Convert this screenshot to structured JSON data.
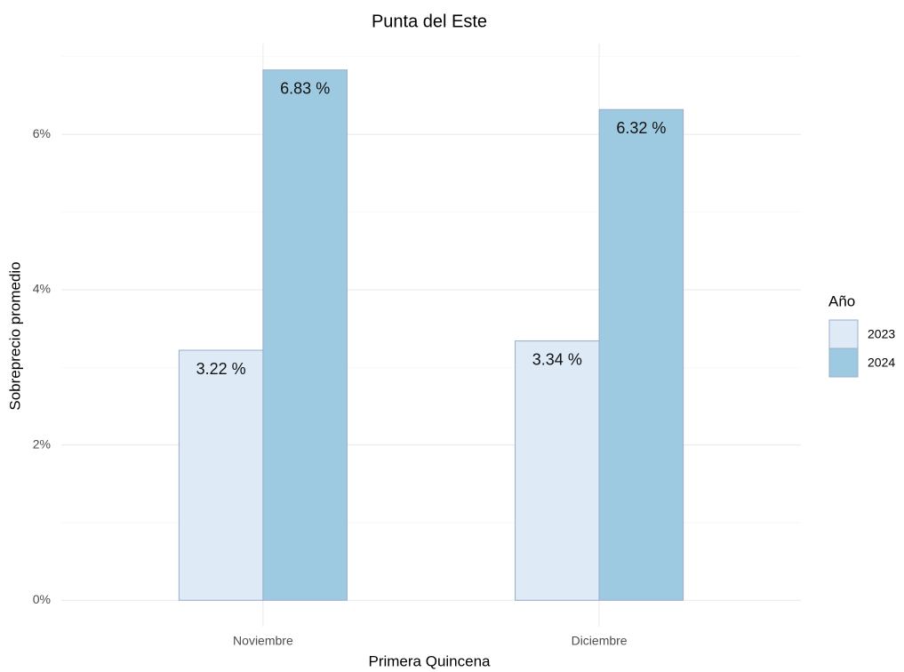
{
  "chart_data": {
    "type": "bar",
    "title": "Punta del Este",
    "x_label": "Primera Quincena",
    "y_label": "Sobreprecio promedio",
    "categories": [
      "Noviembre",
      "Diciembre"
    ],
    "legend_title": "Año",
    "series": [
      {
        "name": "2023",
        "color": "#deebf7",
        "values": [
          3.22,
          3.34
        ],
        "value_labels": [
          "3.22 %",
          "3.34 %"
        ]
      },
      {
        "name": "2024",
        "color": "#9ecae1",
        "values": [
          6.83,
          6.32
        ],
        "value_labels": [
          "6.83 %",
          "6.32 %"
        ]
      }
    ],
    "bar_edge_color": "#9aaccb",
    "ylim": [
      -0.34,
      7.17
    ],
    "yticks": [
      {
        "value": 0,
        "label": "0%"
      },
      {
        "value": 2,
        "label": "2%"
      },
      {
        "value": 4,
        "label": "4%"
      },
      {
        "value": 6,
        "label": "6%"
      }
    ],
    "minor_yticks": [
      1,
      3,
      5,
      7
    ],
    "grid": true,
    "legend_position": "right"
  }
}
